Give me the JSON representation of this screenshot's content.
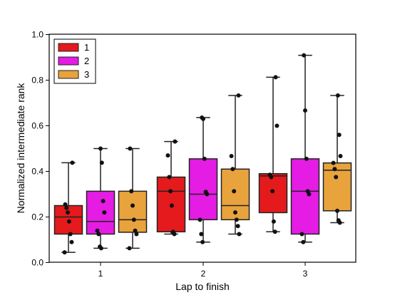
{
  "chart_data": {
    "type": "box",
    "xlabel": "Lap to finish",
    "ylabel": "Normalized intermediate rank",
    "ylim": [
      0.0,
      1.0
    ],
    "yticks": [
      "0.0",
      "0.2",
      "0.4",
      "0.6",
      "0.8",
      "1.0"
    ],
    "categories": [
      "1",
      "2",
      "3"
    ],
    "legend_position": "top-left",
    "series": [
      {
        "name": "1",
        "color": "#e41a1c",
        "boxes": [
          {
            "whislo": 0.045,
            "q1": 0.125,
            "med": 0.2,
            "q3": 0.25,
            "whishi": 0.438,
            "points": [
              0.045,
              0.09,
              0.125,
              0.18,
              0.22,
              0.24,
              0.255,
              0.438
            ]
          },
          {
            "whislo": 0.125,
            "q1": 0.135,
            "med": 0.313,
            "q3": 0.375,
            "whishi": 0.531,
            "points": [
              0.125,
              0.135,
              0.25,
              0.313,
              0.375,
              0.47,
              0.531
            ]
          },
          {
            "whislo": 0.135,
            "q1": 0.219,
            "med": 0.38,
            "q3": 0.39,
            "whishi": 0.813,
            "points": [
              0.135,
              0.18,
              0.313,
              0.375,
              0.385,
              0.6,
              0.813
            ]
          }
        ]
      },
      {
        "name": "2",
        "color": "#e41ce4",
        "boxes": [
          {
            "whislo": 0.063,
            "q1": 0.125,
            "med": 0.18,
            "q3": 0.313,
            "whishi": 0.5,
            "points": [
              0.063,
              0.07,
              0.125,
              0.14,
              0.22,
              0.27,
              0.438,
              0.5
            ]
          },
          {
            "whislo": 0.09,
            "q1": 0.188,
            "med": 0.3,
            "q3": 0.455,
            "whishi": 0.636,
            "points": [
              0.09,
              0.125,
              0.188,
              0.3,
              0.31,
              0.455,
              0.63,
              0.636
            ]
          },
          {
            "whislo": 0.09,
            "q1": 0.125,
            "med": 0.313,
            "q3": 0.455,
            "whishi": 0.909,
            "points": [
              0.09,
              0.125,
              0.3,
              0.313,
              0.455,
              0.667,
              0.909
            ]
          }
        ]
      },
      {
        "name": "3",
        "color": "#e8a33d",
        "boxes": [
          {
            "whislo": 0.063,
            "q1": 0.133,
            "med": 0.188,
            "q3": 0.313,
            "whishi": 0.5,
            "points": [
              0.063,
              0.125,
              0.14,
              0.188,
              0.25,
              0.313,
              0.5
            ]
          },
          {
            "whislo": 0.125,
            "q1": 0.188,
            "med": 0.25,
            "q3": 0.41,
            "whishi": 0.733,
            "points": [
              0.125,
              0.16,
              0.188,
              0.22,
              0.313,
              0.41,
              0.467,
              0.733
            ]
          },
          {
            "whislo": 0.175,
            "q1": 0.227,
            "med": 0.405,
            "q3": 0.437,
            "whishi": 0.733,
            "points": [
              0.175,
              0.185,
              0.227,
              0.375,
              0.41,
              0.437,
              0.467,
              0.56,
              0.733
            ]
          }
        ]
      }
    ]
  }
}
